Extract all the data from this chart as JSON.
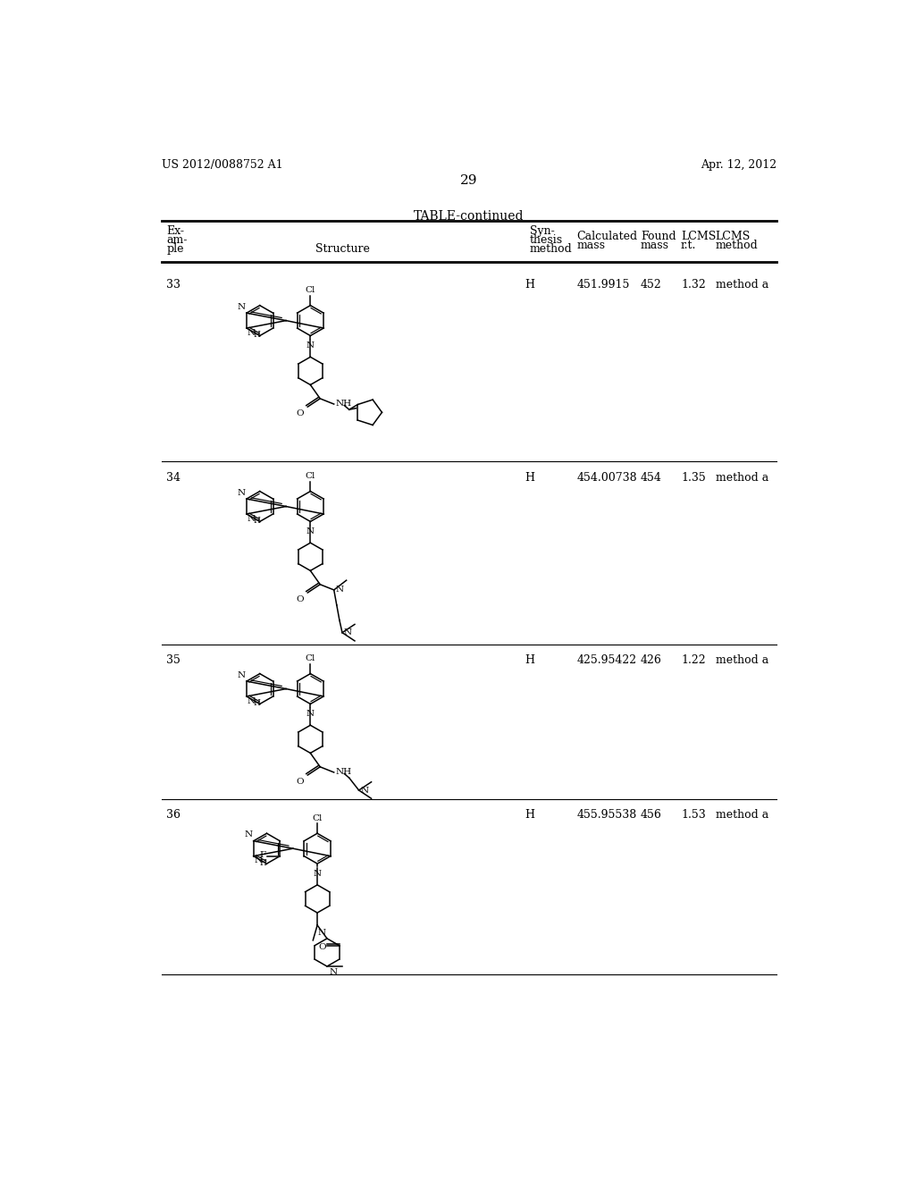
{
  "page_number": "29",
  "left_header": "US 2012/0088752 A1",
  "right_header": "Apr. 12, 2012",
  "table_title": "TABLE-continued",
  "rows": [
    {
      "example": "33",
      "synthesis": "H",
      "calc_mass": "451.9915",
      "found_mass": "452",
      "lcms_rt": "1.32",
      "lcms_method": "method a"
    },
    {
      "example": "34",
      "synthesis": "H",
      "calc_mass": "454.00738",
      "found_mass": "454",
      "lcms_rt": "1.35",
      "lcms_method": "method a"
    },
    {
      "example": "35",
      "synthesis": "H",
      "calc_mass": "425.95422",
      "found_mass": "426",
      "lcms_rt": "1.22",
      "lcms_method": "method a"
    },
    {
      "example": "36",
      "synthesis": "H",
      "calc_mass": "455.95538",
      "found_mass": "456",
      "lcms_rt": "1.53",
      "lcms_method": "method a"
    }
  ],
  "bg_color": "#ffffff"
}
